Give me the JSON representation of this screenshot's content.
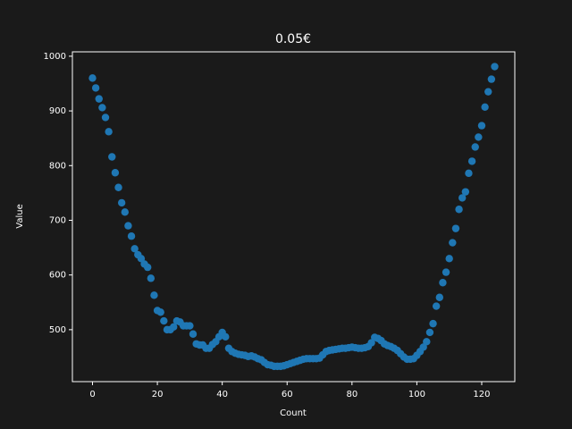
{
  "chart_data": {
    "type": "scatter",
    "title": "0.05€",
    "x_label": "Count",
    "y_label": "Value",
    "color": "#1f77b4",
    "x": [
      0,
      1,
      2,
      3,
      4,
      5,
      6,
      7,
      8,
      9,
      10,
      11,
      12,
      13,
      14,
      15,
      16,
      17,
      18,
      19,
      20,
      21,
      22,
      23,
      24,
      25,
      26,
      27,
      28,
      29,
      30,
      31,
      32,
      33,
      34,
      35,
      36,
      37,
      38,
      39,
      40,
      41,
      42,
      43,
      44,
      45,
      46,
      47,
      48,
      49,
      50,
      51,
      52,
      53,
      54,
      55,
      56,
      57,
      58,
      59,
      60,
      61,
      62,
      63,
      64,
      65,
      66,
      67,
      68,
      69,
      70,
      71,
      72,
      73,
      74,
      75,
      76,
      77,
      78,
      79,
      80,
      81,
      82,
      83,
      84,
      85,
      86,
      87,
      88,
      89,
      90,
      91,
      92,
      93,
      94,
      95,
      96,
      97,
      98,
      99,
      100,
      101,
      102,
      103,
      104,
      105,
      106,
      107,
      108,
      109,
      110,
      111,
      112,
      113,
      114,
      115,
      116,
      117,
      118,
      119,
      120,
      121,
      122,
      123,
      124
    ],
    "values": [
      960,
      942,
      922,
      906,
      888,
      862,
      816,
      787,
      760,
      732,
      715,
      690,
      671,
      648,
      637,
      630,
      620,
      614,
      594,
      563,
      535,
      532,
      516,
      500,
      500,
      505,
      516,
      514,
      507,
      507,
      507,
      492,
      474,
      472,
      472,
      466,
      466,
      473,
      478,
      487,
      495,
      487,
      466,
      460,
      457,
      455,
      454,
      453,
      451,
      452,
      450,
      447,
      445,
      440,
      436,
      435,
      433,
      433,
      433,
      434,
      436,
      438,
      440,
      442,
      444,
      446,
      447,
      447,
      447,
      447,
      448,
      454,
      460,
      462,
      463,
      464,
      465,
      466,
      466,
      467,
      468,
      467,
      466,
      466,
      467,
      469,
      476,
      486,
      484,
      480,
      474,
      471,
      469,
      466,
      462,
      456,
      450,
      446,
      446,
      447,
      453,
      460,
      468,
      478,
      495,
      511,
      543,
      559,
      586,
      605,
      630,
      659,
      685,
      720,
      741,
      752,
      786,
      808,
      834,
      852,
      873,
      907,
      935,
      958,
      981
    ],
    "xlim": [
      -6.2,
      130.2
    ],
    "ylim": [
      405,
      1008
    ],
    "xticks": [
      0,
      20,
      40,
      60,
      80,
      100,
      120
    ],
    "yticks": [
      500,
      600,
      700,
      800,
      900,
      1000
    ]
  }
}
